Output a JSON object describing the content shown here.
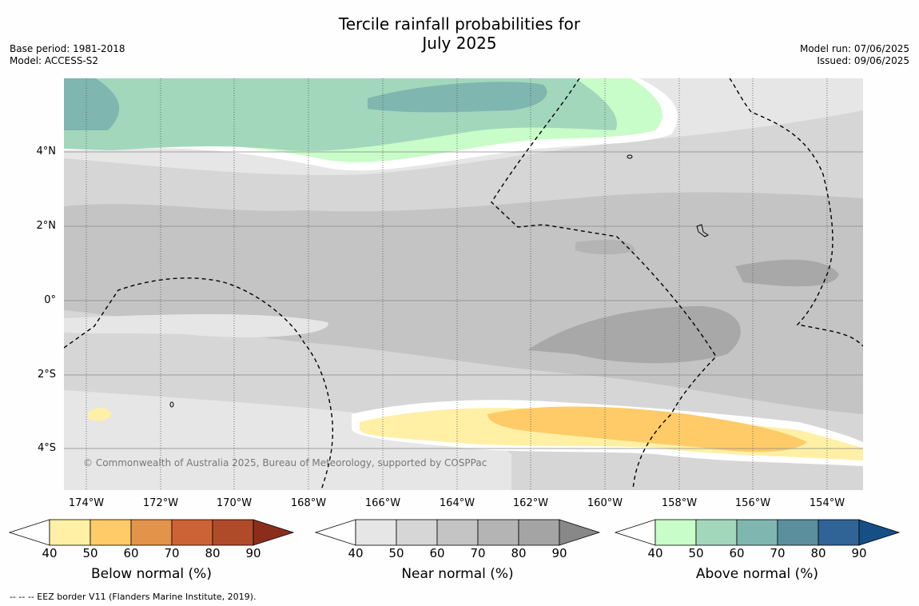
{
  "title_line1": "Tercile rainfall probabilities for",
  "title_line2": "July 2025",
  "meta_left": [
    "Base period: 1981-2018",
    "Model: ACCESS-S2"
  ],
  "meta_right": [
    "Model run: 07/06/2025",
    "Issued: 09/06/2025"
  ],
  "lat_labels": [
    "4°N",
    "2°N",
    "0°",
    "2°S",
    "4°S"
  ],
  "lon_labels": [
    "174°W",
    "172°W",
    "170°W",
    "168°W",
    "166°W",
    "164°W",
    "162°W",
    "160°W",
    "158°W",
    "156°W",
    "154°W"
  ],
  "copyright": "© Commonwealth of Australia 2025, Bureau of Meteorology, supported by COSPPac",
  "footnote": "--  --  -- EEZ border V11 (Flanders Marine Institute, 2019).",
  "colorbars": [
    {
      "label": "Below normal (%)",
      "ticks": [
        "40",
        "50",
        "60",
        "70",
        "80",
        "90"
      ],
      "colors": [
        "#fff0a6",
        "#fecb68",
        "#e2944a",
        "#cc6337",
        "#b04b2a",
        "#8c2d1c"
      ]
    },
    {
      "label": "Near normal (%)",
      "ticks": [
        "40",
        "50",
        "60",
        "70",
        "80",
        "90"
      ],
      "colors": [
        "#e6e6e6",
        "#d6d6d6",
        "#c4c4c4",
        "#b4b4b4",
        "#a4a4a4",
        "#888888"
      ]
    },
    {
      "label": "Above normal (%)",
      "ticks": [
        "40",
        "50",
        "60",
        "70",
        "80",
        "90"
      ],
      "colors": [
        "#c8fcc8",
        "#a2d7bc",
        "#7fb6b0",
        "#5b8f9e",
        "#306496",
        "#164e86"
      ]
    }
  ]
}
